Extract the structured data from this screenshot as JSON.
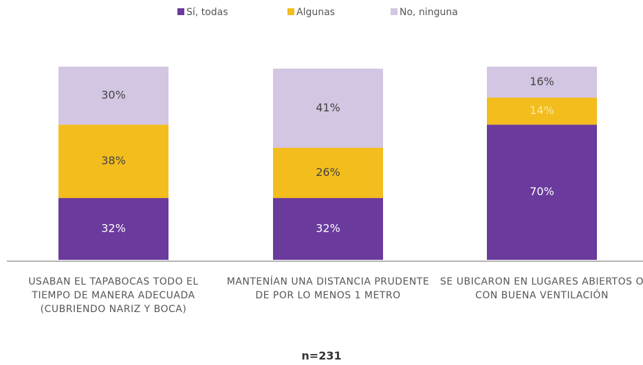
{
  "chart_data": {
    "type": "stacked_bar",
    "categories": [
      "USABAN EL TAPABOCAS TODO EL TIEMPO DE MANERA ADECUADA (CUBRIENDO NARIZ Y BOCA)",
      "MANTENÍAN UNA DISTANCIA PRUDENTE DE POR LO MENOS 1 METRO",
      "SE UBICARON EN LUGARES ABIERTOS O CON BUENA VENTILACIÓN"
    ],
    "series": [
      {
        "name": "Sí, todas",
        "color": "#6a3a9c",
        "values": [
          32,
          32,
          70
        ],
        "value_labels": [
          "32%",
          "32%",
          "70%"
        ]
      },
      {
        "name": "Algunas",
        "color": "#f2bd1d",
        "values": [
          38,
          26,
          14
        ],
        "value_labels": [
          "38%",
          "26%",
          "14%"
        ]
      },
      {
        "name": "No, ninguna",
        "color": "#d2c6e3",
        "values": [
          30,
          41,
          16
        ],
        "value_labels": [
          "30%",
          "41%",
          "16%"
        ]
      }
    ],
    "ylim": [
      0,
      100
    ],
    "annotation": "n=231"
  }
}
